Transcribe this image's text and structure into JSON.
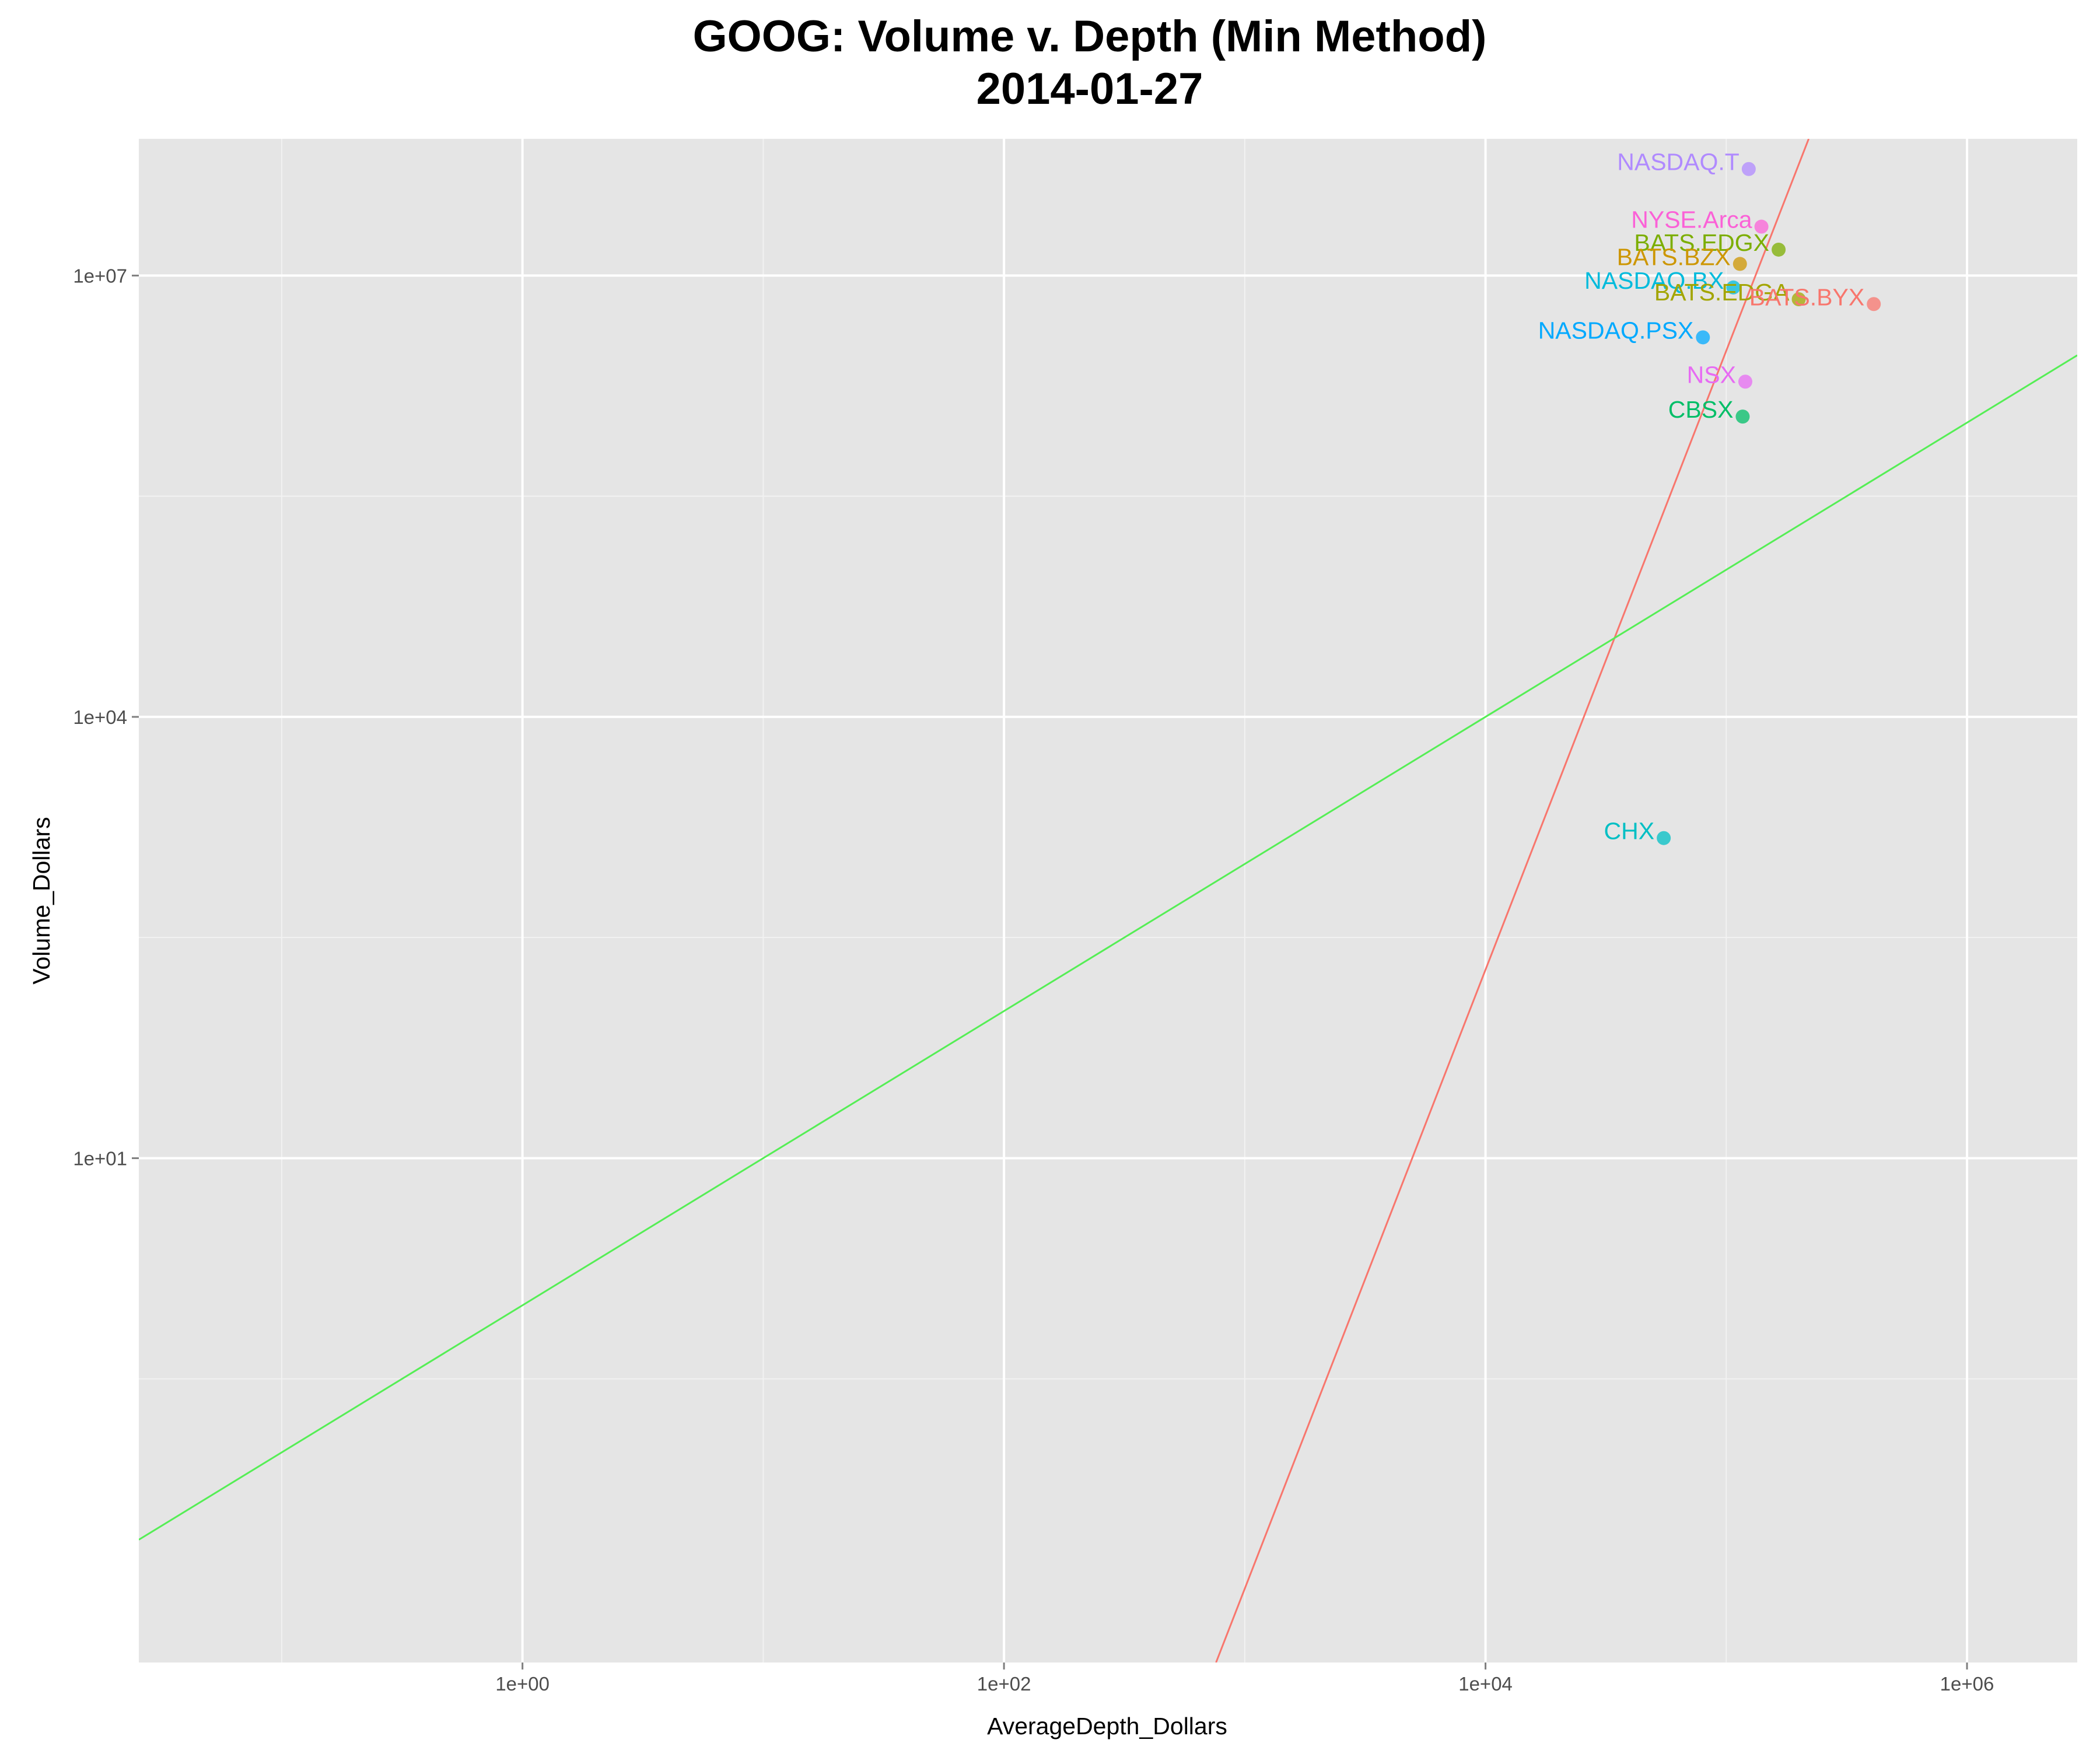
{
  "chart_data": {
    "type": "scatter",
    "title": "GOOG: Volume v. Depth (Min Method)",
    "subtitle": "2014-01-27",
    "xlabel": "AverageDepth_Dollars",
    "ylabel": "Volume_Dollars",
    "x_scale": "log10",
    "y_scale": "log10",
    "xlim": [
      0.0255,
      2870000
    ],
    "ylim": [
      0.00373,
      85000000
    ],
    "x_ticks": [
      "1e+00",
      "1e+02",
      "1e+04",
      "1e+06"
    ],
    "x_tick_values": [
      1,
      100,
      10000,
      1000000
    ],
    "y_ticks": [
      "1e+01",
      "1e+04",
      "1e+07"
    ],
    "y_tick_values": [
      10,
      10000,
      10000000
    ],
    "grid": true,
    "legend": "none",
    "points": [
      {
        "label": "NASDAQ.T",
        "x": 124000,
        "y": 53000000,
        "color": "#b08aff"
      },
      {
        "label": "NYSE.Arca",
        "x": 140000,
        "y": 21500000,
        "color": "#fb61d7"
      },
      {
        "label": "BATS.EDGX",
        "x": 165000,
        "y": 15000000,
        "color": "#7cae00"
      },
      {
        "label": "BATS.BZX",
        "x": 114000,
        "y": 12000000,
        "color": "#cd9600"
      },
      {
        "label": "NASDAQ.BX",
        "x": 107000,
        "y": 8300000,
        "color": "#00bbdc"
      },
      {
        "label": "BATS.EDGA",
        "x": 200000,
        "y": 6900000,
        "color": "#a3a500"
      },
      {
        "label": "BATS.BYX",
        "x": 410000,
        "y": 6400000,
        "color": "#f8766d"
      },
      {
        "label": "NASDAQ.PSX",
        "x": 80000,
        "y": 3800000,
        "color": "#00a9ff"
      },
      {
        "label": "NSX",
        "x": 120000,
        "y": 1900000,
        "color": "#e76bf3"
      },
      {
        "label": "CBSX",
        "x": 117000,
        "y": 1100000,
        "color": "#00be67"
      },
      {
        "label": "CHX",
        "x": 55000,
        "y": 1500,
        "color": "#00bfc4"
      }
    ],
    "lines": [
      {
        "color": "#f8766d",
        "points": [
          [
            760,
            0.00373
          ],
          [
            220000,
            85000000
          ]
        ]
      },
      {
        "color": "#55ee55",
        "points": [
          [
            0.0255,
            0.0255
          ],
          [
            2870000,
            2870000
          ]
        ]
      }
    ]
  }
}
